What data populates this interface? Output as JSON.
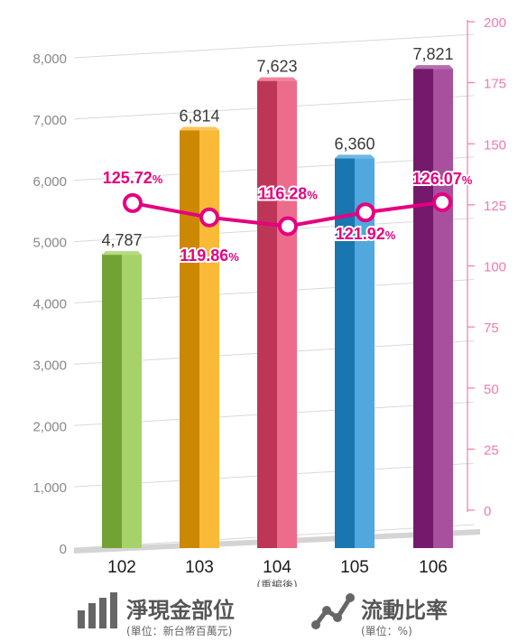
{
  "chart_data": {
    "type": "bar",
    "categories": [
      "102",
      "103",
      "104",
      "105",
      "106"
    ],
    "category_notes": [
      "",
      "",
      "(重編後)",
      "",
      ""
    ],
    "y_left": {
      "ylim": [
        0,
        8000
      ],
      "ticks": [
        "0",
        "1,000",
        "2,000",
        "3,000",
        "4,000",
        "5,000",
        "6,000",
        "7,000",
        "8,000"
      ],
      "tick_values": [
        0,
        1000,
        2000,
        3000,
        4000,
        5000,
        6000,
        7000,
        8000
      ]
    },
    "y_right": {
      "ylim": [
        0,
        200
      ],
      "ticks": [
        "0",
        "25",
        "50",
        "75",
        "100",
        "125",
        "150",
        "175",
        "200"
      ],
      "tick_values": [
        0,
        25,
        50,
        75,
        100,
        125,
        150,
        175,
        200
      ],
      "color": "#f07ab0"
    },
    "series": [
      {
        "name": "淨現金部位",
        "type": "bar",
        "axis": "left",
        "values": [
          4787,
          6814,
          7623,
          6360,
          7821
        ],
        "labels": [
          "4,787",
          "6,814",
          "7,623",
          "6,360",
          "7,821"
        ],
        "colors": [
          "#8cc63f",
          "#f7a600",
          "#e8426a",
          "#1e90d6",
          "#8e1e82"
        ]
      },
      {
        "name": "流動比率",
        "type": "line",
        "axis": "right",
        "values": [
          125.72,
          119.86,
          116.28,
          121.92,
          126.07
        ],
        "labels": [
          "125.72",
          "119.86",
          "116.28",
          "121.92",
          "126.07"
        ],
        "label_suffix": "%",
        "color": "#e4007f"
      }
    ],
    "legend": [
      {
        "title": "淨現金部位",
        "unit": "(單位：新台幣百萬元)",
        "icon": "bar-chart-icon"
      },
      {
        "title": "流動比率",
        "unit": "(單位：%)",
        "icon": "line-chart-icon"
      }
    ],
    "grid": true,
    "legend_position": "bottom"
  }
}
